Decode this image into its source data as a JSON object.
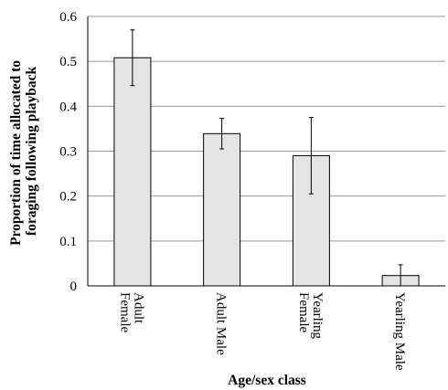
{
  "chart_data": {
    "type": "bar",
    "title": "",
    "xlabel": "Age/sex class",
    "ylabel_lines": [
      "Proportion of time allocated to",
      "foraging following playback"
    ],
    "categories": [
      [
        "Adult",
        "Female"
      ],
      [
        "Adult Male"
      ],
      [
        "Yearling",
        "Female"
      ],
      [
        "Yearling Male"
      ]
    ],
    "values": [
      0.508,
      0.339,
      0.29,
      0.023
    ],
    "error_low": [
      0.446,
      0.305,
      0.205,
      0.0
    ],
    "error_high": [
      0.57,
      0.373,
      0.375,
      0.047
    ],
    "ylim": [
      0,
      0.6
    ],
    "yticks": [
      "0",
      "0.1",
      "0.2",
      "0.3",
      "0.4",
      "0.5",
      "0.6"
    ],
    "grid": true,
    "bar_color": "#e4e4e4",
    "grid_color": "#9a9a9a"
  }
}
